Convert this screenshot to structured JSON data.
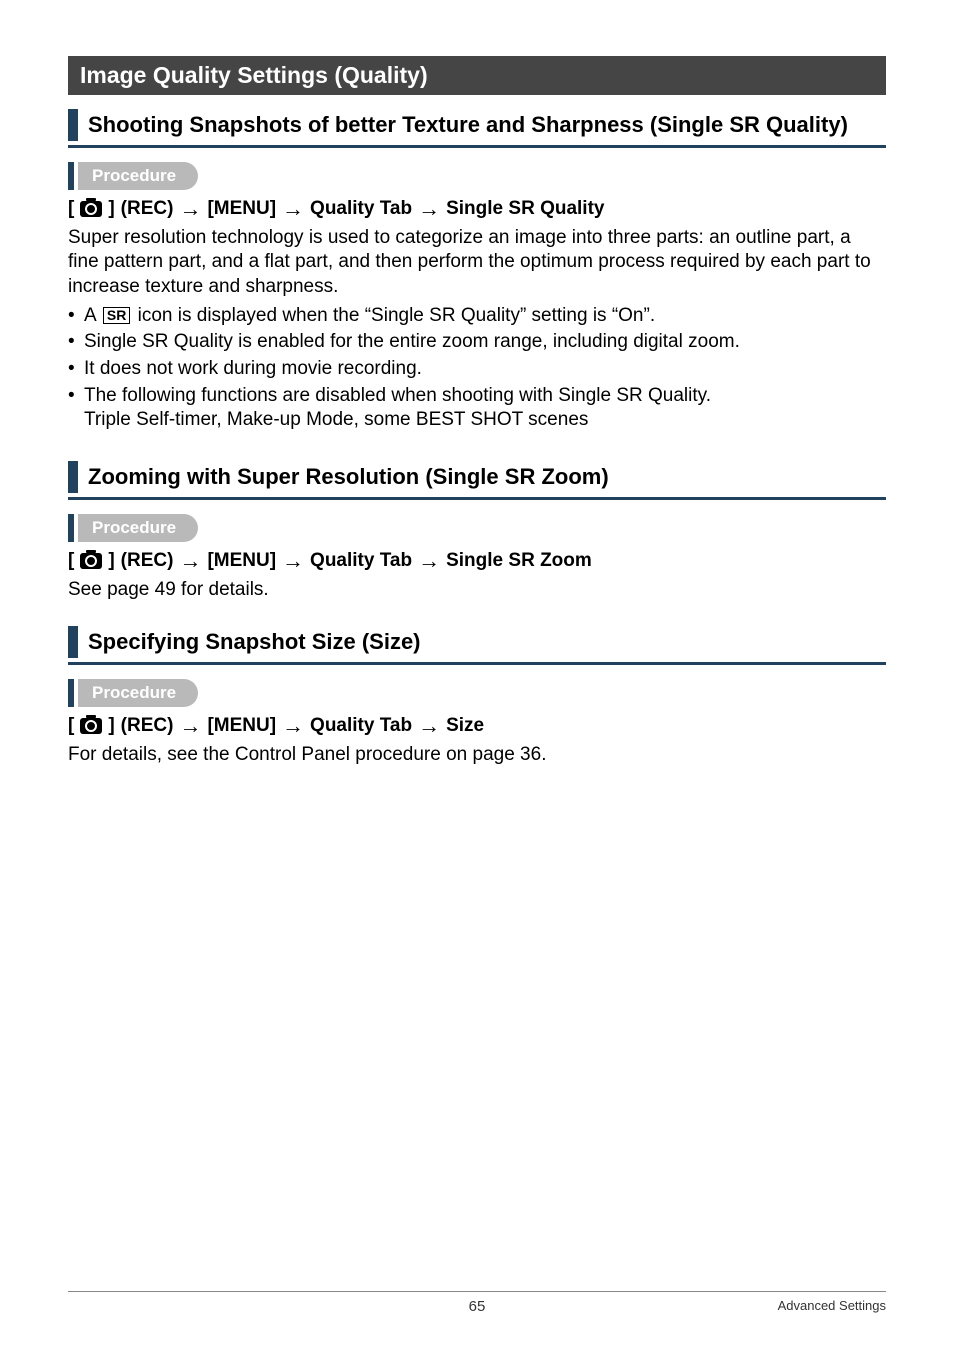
{
  "section": {
    "title": "Image Quality Settings (Quality)"
  },
  "h2": {
    "sr_quality": "Shooting Snapshots of better Texture and Sharpness (Single SR Quality)",
    "sr_zoom": "Zooming with Super Resolution (Single SR Zoom)",
    "size": "Specifying Snapshot Size (Size)"
  },
  "procedure_label": "Procedure",
  "path": {
    "rec": "(REC)",
    "menu": "[MENU]",
    "tab": "Quality Tab",
    "sr_quality": "Single SR Quality",
    "sr_zoom": "Single SR Zoom",
    "size": "Size"
  },
  "arrow_glyph": "→",
  "sr_box_label": "SR",
  "body": {
    "sr_quality_intro": "Super resolution technology is used to categorize an image into three parts: an outline part, a fine pattern part, and a flat part, and then perform the optimum process required by each part to increase texture and sharpness.",
    "bullet1_pre": "A ",
    "bullet1_post": " icon is displayed when the “Single SR Quality” setting is “On”.",
    "bullet2": "Single SR Quality is enabled for the entire zoom range, including digital zoom.",
    "bullet3": "It does not work during movie recording.",
    "bullet4_line1": "The following functions are disabled when shooting with Single SR Quality.",
    "bullet4_line2": "Triple Self-timer, Make-up Mode, some BEST SHOT scenes",
    "sr_zoom_body": "See page 49 for details.",
    "size_body": "For details, see the Control Panel procedure on page 36."
  },
  "footer": {
    "page": "65",
    "section": "Advanced Settings"
  }
}
